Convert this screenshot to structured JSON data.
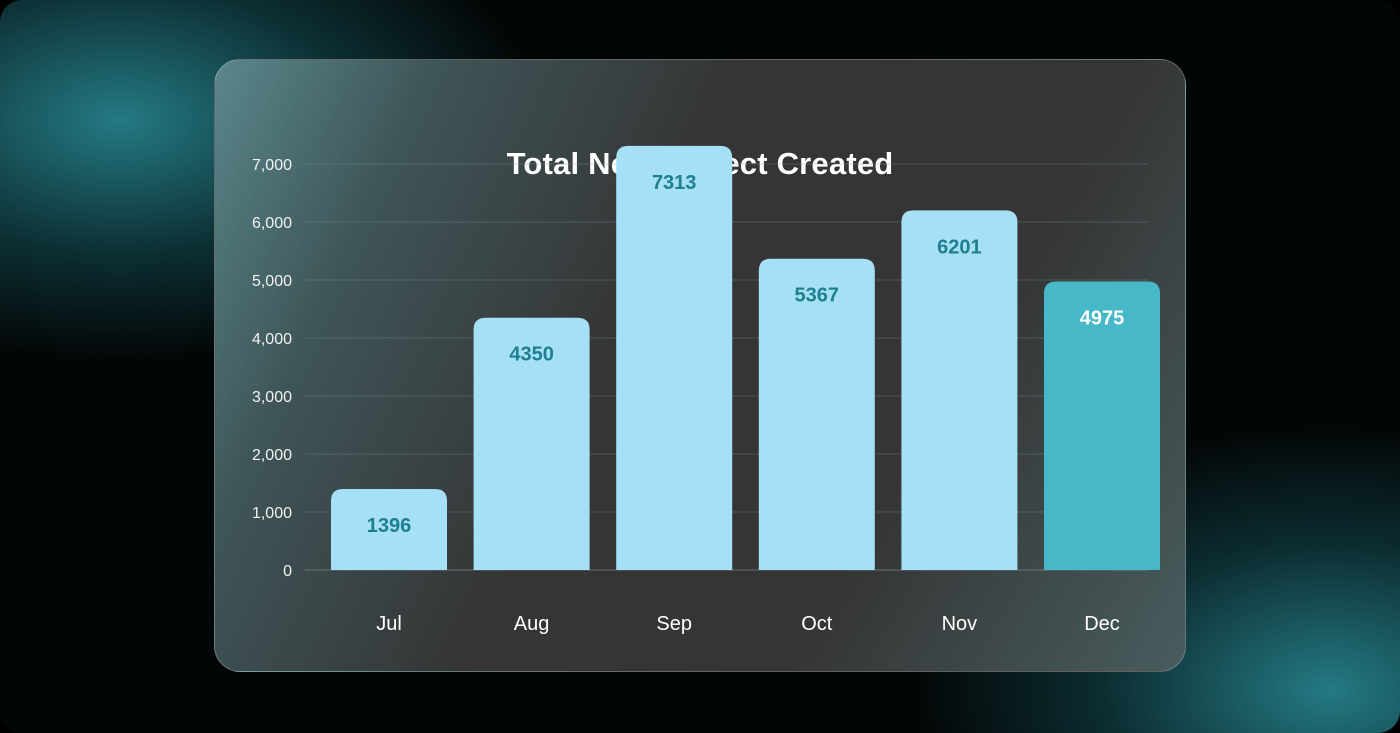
{
  "chart_data": {
    "type": "bar",
    "title": "Total New Project Created",
    "categories": [
      "Jul",
      "Aug",
      "Sep",
      "Oct",
      "Nov",
      "Dec"
    ],
    "values": [
      1396,
      4350,
      7313,
      5367,
      6201,
      4975
    ],
    "data_labels": [
      "1396",
      "4350",
      "7313",
      "5367",
      "6201",
      "4975"
    ],
    "ylim": [
      0,
      7000
    ],
    "yticks": [
      0,
      1000,
      2000,
      3000,
      4000,
      5000,
      6000,
      7000
    ],
    "ytick_labels": [
      "0",
      "1,000",
      "2,000",
      "3,000",
      "4,000",
      "5,000",
      "6,000",
      "7,000"
    ],
    "grid": true,
    "highlight_index": 5
  },
  "colors": {
    "bar": "#a5e0f7",
    "bar_highlight": "#47b8c8",
    "label_on_bar": "#1e7f8f",
    "label_on_highlight": "#ffffff"
  }
}
